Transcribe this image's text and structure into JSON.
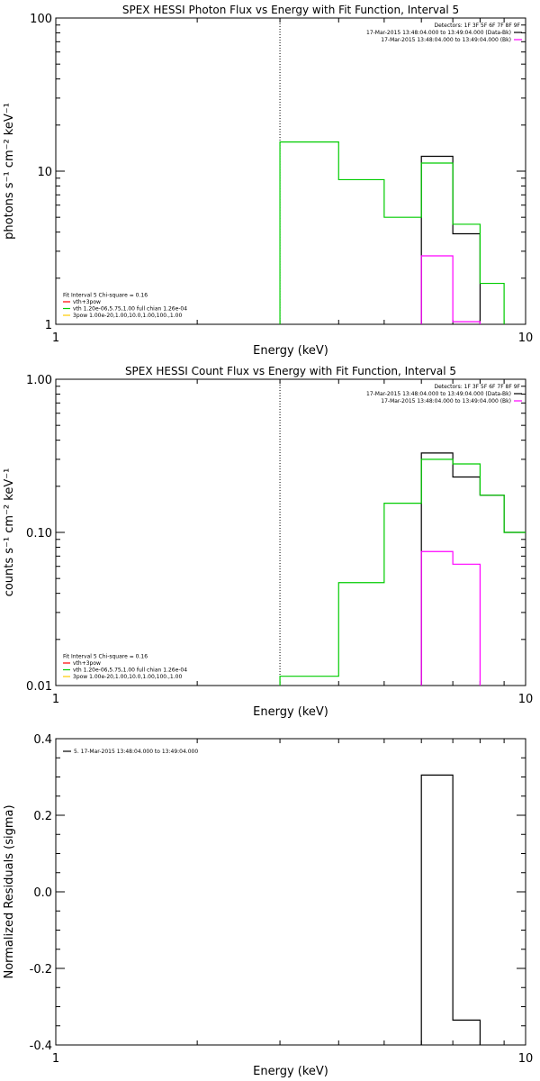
{
  "colors": {
    "data": "#000000",
    "background": "#ff00ff",
    "model": "#00cc00",
    "vth": "#ff0000",
    "spec": "#ffcc00"
  },
  "chart_data": [
    {
      "type": "line",
      "title": "SPEX HESSI Photon Flux vs Energy with Fit Function, Interval 5",
      "xlabel": "Energy (keV)",
      "ylabel": "photons s⁻¹ cm⁻² keV⁻¹",
      "xscale": "log",
      "yscale": "log",
      "xlim": [
        1,
        10
      ],
      "ylim": [
        1,
        100
      ],
      "xticks": [
        {
          "v": 1,
          "label": "1"
        },
        {
          "v": 10,
          "label": "10"
        }
      ],
      "yticks": [
        {
          "v": 1,
          "label": "1"
        },
        {
          "v": 10,
          "label": "10"
        },
        {
          "v": 100,
          "label": "100"
        }
      ],
      "vline": 3.0,
      "legend_right": [
        {
          "text": "Detectors: 1F 3F 5F 6F 7F 8F 9F",
          "color": ""
        },
        {
          "text": "17-Mar-2015 13:48:04.000 to 13:49:04.000 (Data-Bk)",
          "color": "#000000"
        },
        {
          "text": "17-Mar-2015 13:48:04.000 to 13:49:04.000 (Bk)",
          "color": "#ff00ff"
        }
      ],
      "legend_left": [
        {
          "text": "Fit Interval 5   Chi-square = 0.16",
          "color": ""
        },
        {
          "text": "vth+3pow",
          "color": "#ff0000"
        },
        {
          "text": "vth 1.20e-06,5.75,1.00  full chian 1.26e-04",
          "color": "#00cc00"
        },
        {
          "text": "3pow 1.00e-20,1.00,10.0,1.00,100.,1.00",
          "color": "#ffcc00"
        }
      ],
      "series": [
        {
          "name": "(Data-Bk)",
          "color": "#000000",
          "steps": [
            {
              "x0": 6.0,
              "x1": 7.0,
              "y": 12.5
            },
            {
              "x0": 7.0,
              "x1": 8.0,
              "y": 3.9
            }
          ]
        },
        {
          "name": "(Bk)",
          "color": "#ff00ff",
          "steps": [
            {
              "x0": 6.0,
              "x1": 7.0,
              "y": 2.8
            },
            {
              "x0": 7.0,
              "x1": 8.0,
              "y": 1.04
            }
          ]
        },
        {
          "name": "vth",
          "color": "#00cc00",
          "steps": [
            {
              "x0": 3.0,
              "x1": 4.0,
              "y": 15.5
            },
            {
              "x0": 4.0,
              "x1": 5.0,
              "y": 8.8
            },
            {
              "x0": 5.0,
              "x1": 6.0,
              "y": 5.0
            },
            {
              "x0": 6.0,
              "x1": 7.0,
              "y": 11.3
            },
            {
              "x0": 7.0,
              "x1": 8.0,
              "y": 4.5
            },
            {
              "x0": 8.0,
              "x1": 9.0,
              "y": 1.85
            }
          ]
        }
      ]
    },
    {
      "type": "line",
      "title": "SPEX HESSI Count Flux vs Energy with Fit Function, Interval 5",
      "xlabel": "Energy (keV)",
      "ylabel": "counts s⁻¹ cm⁻² keV⁻¹",
      "xscale": "log",
      "yscale": "log",
      "xlim": [
        1,
        10
      ],
      "ylim": [
        0.01,
        1.0
      ],
      "xticks": [
        {
          "v": 1,
          "label": "1"
        },
        {
          "v": 10,
          "label": "10"
        }
      ],
      "yticks": [
        {
          "v": 0.01,
          "label": "0.01"
        },
        {
          "v": 0.1,
          "label": "0.10"
        },
        {
          "v": 1.0,
          "label": "1.00"
        }
      ],
      "vline": 3.0,
      "legend_right": [
        {
          "text": "Detectors: 1F 3F 5F 6F 7F 8F 9F",
          "color": ""
        },
        {
          "text": "17-Mar-2015 13:48:04.000 to 13:49:04.000 (Data-Bk)",
          "color": "#000000"
        },
        {
          "text": "17-Mar-2015 13:48:04.000 to 13:49:04.000 (Bk)",
          "color": "#ff00ff"
        }
      ],
      "legend_left": [
        {
          "text": "Fit Interval 5   Chi-square = 0.16",
          "color": ""
        },
        {
          "text": "vth+3pow",
          "color": "#ff0000"
        },
        {
          "text": "vth 1.20e-06,5.75,1.00  full chian 1.26e-04",
          "color": "#00cc00"
        },
        {
          "text": "3pow 1.00e-20,1.00,10.0,1.00,100.,1.00",
          "color": "#ffcc00"
        }
      ],
      "series": [
        {
          "name": "(Data-Bk)",
          "color": "#000000",
          "steps": [
            {
              "x0": 6.0,
              "x1": 7.0,
              "y": 0.33
            },
            {
              "x0": 7.0,
              "x1": 8.0,
              "y": 0.23
            },
            {
              "x0": 8.0,
              "x1": 9.0,
              "y": 0.175
            },
            {
              "x0": 9.0,
              "x1": 10.0,
              "y": 0.1
            }
          ]
        },
        {
          "name": "(Bk)",
          "color": "#ff00ff",
          "steps": [
            {
              "x0": 6.0,
              "x1": 7.0,
              "y": 0.075
            },
            {
              "x0": 7.0,
              "x1": 8.0,
              "y": 0.062
            }
          ]
        },
        {
          "name": "vth",
          "color": "#00cc00",
          "steps": [
            {
              "x0": 3.0,
              "x1": 4.0,
              "y": 0.0115
            },
            {
              "x0": 4.0,
              "x1": 5.0,
              "y": 0.047
            },
            {
              "x0": 5.0,
              "x1": 6.0,
              "y": 0.155
            },
            {
              "x0": 6.0,
              "x1": 7.0,
              "y": 0.3
            },
            {
              "x0": 7.0,
              "x1": 8.0,
              "y": 0.28
            },
            {
              "x0": 8.0,
              "x1": 9.0,
              "y": 0.175
            },
            {
              "x0": 9.0,
              "x1": 10.0,
              "y": 0.1
            }
          ]
        }
      ]
    },
    {
      "type": "line",
      "title": "",
      "xlabel": "Energy (keV)",
      "ylabel": "Normalized Residuals (sigma)",
      "xscale": "log",
      "yscale": "linear",
      "xlim": [
        1,
        10
      ],
      "ylim": [
        -0.4,
        0.4
      ],
      "xticks": [
        {
          "v": 1,
          "label": "1"
        },
        {
          "v": 10,
          "label": "10"
        }
      ],
      "yticks": [
        {
          "v": -0.4,
          "label": "-0.4"
        },
        {
          "v": -0.2,
          "label": "-0.2"
        },
        {
          "v": 0.0,
          "label": "0.0"
        },
        {
          "v": 0.2,
          "label": "0.2"
        },
        {
          "v": 0.4,
          "label": "0.4"
        }
      ],
      "legend_topleft": [
        {
          "text": "5. 17-Mar-2015 13:48:04.000 to 13:49:04.000",
          "color": "#000000"
        }
      ],
      "series": [
        {
          "name": "5. 17-Mar-2015 13:48:04.000 to 13:49:04.000",
          "color": "#000000",
          "steps": [
            {
              "x0": 6.0,
              "x1": 7.0,
              "y": 0.305
            },
            {
              "x0": 7.0,
              "x1": 8.0,
              "y": -0.335
            }
          ]
        }
      ]
    }
  ]
}
